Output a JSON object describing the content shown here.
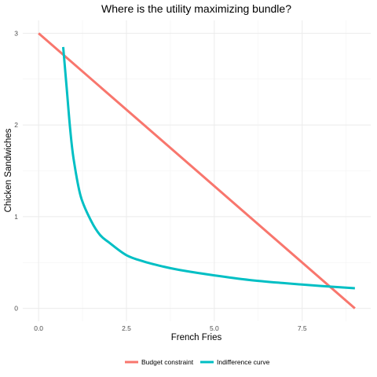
{
  "chart_data": {
    "type": "line",
    "title": "Where is the utility maximizing bundle?",
    "xlabel": "French Fries",
    "ylabel": "Chicken Sandwiches",
    "xlim": [
      -0.45,
      9.45
    ],
    "ylim": [
      -0.14,
      3.14
    ],
    "x_ticks": [
      0,
      2.5,
      5,
      7.5
    ],
    "x_tick_labels": [
      "0.0",
      "2.5",
      "5.0",
      "7.5"
    ],
    "y_ticks": [
      0,
      1,
      2,
      3
    ],
    "y_tick_labels": [
      "0",
      "1",
      "2",
      "3"
    ],
    "grid": true,
    "legend_position": "bottom",
    "series": [
      {
        "name": "Budget constraint",
        "color": "#F8766D",
        "x": [
          0,
          9
        ],
        "y": [
          3,
          0
        ]
      },
      {
        "name": "Indifference curve",
        "color": "#00BFC4",
        "x": [
          0.7,
          0.8,
          0.9,
          1.0,
          1.2,
          1.5,
          1.75,
          2.0,
          2.5,
          3.0,
          3.5,
          4.0,
          5.0,
          6.0,
          7.0,
          8.0,
          9.0
        ],
        "y": [
          2.85,
          2.4,
          1.95,
          1.62,
          1.22,
          0.95,
          0.8,
          0.72,
          0.58,
          0.51,
          0.46,
          0.42,
          0.36,
          0.31,
          0.275,
          0.245,
          0.22
        ]
      }
    ]
  }
}
